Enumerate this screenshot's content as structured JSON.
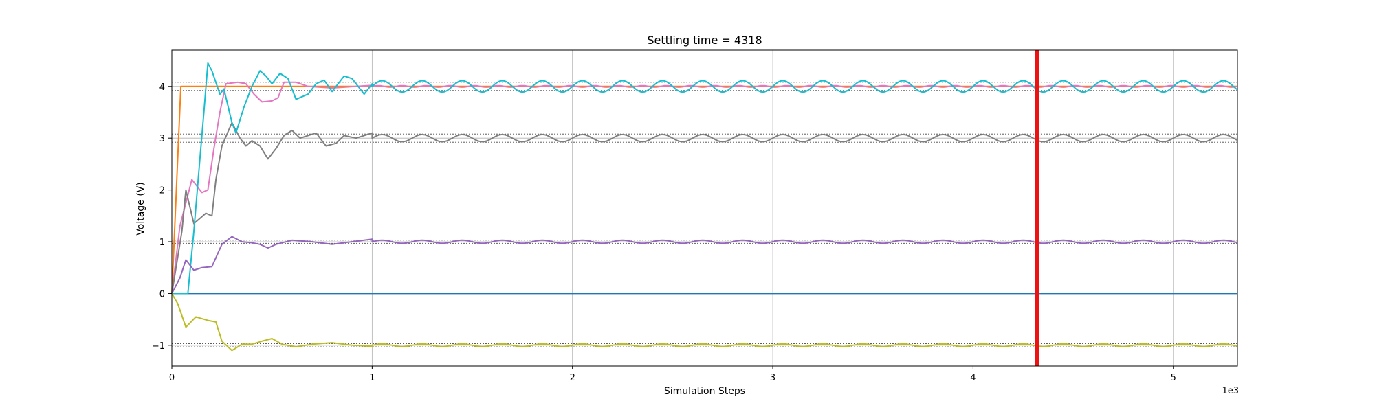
{
  "chart_data": {
    "type": "line",
    "title": "Settling time = 4318",
    "xlabel": "Simulation Steps",
    "ylabel": "Voltage (V)",
    "x_offset_label": "1e3",
    "xlim": [
      0,
      5.32
    ],
    "ylim": [
      -1.4,
      4.7
    ],
    "x_ticks": [
      0,
      1,
      2,
      3,
      4,
      5
    ],
    "x_tick_labels": [
      "0",
      "1",
      "2",
      "3",
      "4",
      "5"
    ],
    "y_ticks": [
      -1,
      0,
      1,
      2,
      3,
      4
    ],
    "y_tick_labels": [
      "−1",
      "0",
      "1",
      "2",
      "3",
      "4"
    ],
    "grid": true,
    "settling_time": 4.318,
    "settling_marker_color": "#ee1111",
    "reference_band_color": "#444444",
    "reference_bands": [
      {
        "target": 4,
        "tol": 0.08
      },
      {
        "target": 3,
        "tol": 0.08
      },
      {
        "target": 1,
        "tol": 0.03
      },
      {
        "target": -1,
        "tol": 0.03
      }
    ],
    "series": [
      {
        "color": "#1f77b4",
        "points": [
          [
            0,
            0
          ],
          [
            5.32,
            0
          ]
        ]
      },
      {
        "color": "#ff7f0e",
        "points": [
          [
            0,
            0
          ],
          [
            0.045,
            4.0
          ],
          [
            5.32,
            4.0
          ]
        ]
      },
      {
        "color": "#e377c2",
        "points": [
          [
            0,
            0
          ],
          [
            0.04,
            1.3
          ],
          [
            0.1,
            2.2
          ],
          [
            0.15,
            1.95
          ],
          [
            0.18,
            2.0
          ],
          [
            0.21,
            2.8
          ],
          [
            0.24,
            3.5
          ],
          [
            0.27,
            4.05
          ],
          [
            0.33,
            4.08
          ],
          [
            0.37,
            4.05
          ],
          [
            0.41,
            3.85
          ],
          [
            0.45,
            3.7
          ],
          [
            0.5,
            3.72
          ],
          [
            0.53,
            3.78
          ],
          [
            0.56,
            4.08
          ],
          [
            0.62,
            4.08
          ],
          [
            0.68,
            4.0
          ],
          [
            0.8,
            3.97
          ],
          [
            1.0,
            4.02
          ],
          [
            5.32,
            4.0
          ]
        ],
        "osc": {
          "start": 1.0,
          "center": 4.0,
          "amp": 0.015,
          "period": 0.12
        }
      },
      {
        "color": "#7f7f7f",
        "points": [
          [
            0,
            0
          ],
          [
            0.05,
            1.2
          ],
          [
            0.07,
            2.0
          ],
          [
            0.11,
            1.35
          ],
          [
            0.17,
            1.55
          ],
          [
            0.2,
            1.5
          ],
          [
            0.22,
            2.2
          ],
          [
            0.25,
            2.85
          ],
          [
            0.3,
            3.3
          ],
          [
            0.34,
            3.0
          ],
          [
            0.37,
            2.85
          ],
          [
            0.4,
            2.95
          ],
          [
            0.44,
            2.85
          ],
          [
            0.48,
            2.6
          ],
          [
            0.52,
            2.8
          ],
          [
            0.56,
            3.05
          ],
          [
            0.6,
            3.15
          ],
          [
            0.64,
            3.0
          ],
          [
            0.68,
            3.05
          ],
          [
            0.72,
            3.1
          ],
          [
            0.77,
            2.85
          ],
          [
            0.82,
            2.9
          ],
          [
            0.86,
            3.05
          ],
          [
            0.92,
            3.0
          ],
          [
            1.0,
            3.1
          ],
          [
            5.32,
            3.0
          ]
        ],
        "osc": {
          "start": 1.0,
          "center": 3.0,
          "amp": 0.07,
          "period": 0.2
        }
      },
      {
        "color": "#17becf",
        "points": [
          [
            0,
            0
          ],
          [
            0.08,
            0
          ],
          [
            0.11,
            1.2
          ],
          [
            0.14,
            2.6
          ],
          [
            0.16,
            3.5
          ],
          [
            0.18,
            4.45
          ],
          [
            0.2,
            4.3
          ],
          [
            0.24,
            3.85
          ],
          [
            0.26,
            3.95
          ],
          [
            0.3,
            3.3
          ],
          [
            0.32,
            3.1
          ],
          [
            0.36,
            3.6
          ],
          [
            0.4,
            4.0
          ],
          [
            0.44,
            4.3
          ],
          [
            0.47,
            4.2
          ],
          [
            0.5,
            4.05
          ],
          [
            0.54,
            4.25
          ],
          [
            0.58,
            4.15
          ],
          [
            0.62,
            3.75
          ],
          [
            0.68,
            3.85
          ],
          [
            0.72,
            4.05
          ],
          [
            0.76,
            4.12
          ],
          [
            0.8,
            3.9
          ],
          [
            0.86,
            4.2
          ],
          [
            0.9,
            4.15
          ],
          [
            0.96,
            3.85
          ],
          [
            1.0,
            4.05
          ],
          [
            5.32,
            4.0
          ]
        ],
        "osc": {
          "start": 1.0,
          "center": 4.0,
          "amp": 0.11,
          "period": 0.2
        }
      },
      {
        "color": "#9467bd",
        "points": [
          [
            0,
            0
          ],
          [
            0.04,
            0.3
          ],
          [
            0.07,
            0.65
          ],
          [
            0.11,
            0.45
          ],
          [
            0.15,
            0.5
          ],
          [
            0.2,
            0.52
          ],
          [
            0.25,
            0.95
          ],
          [
            0.3,
            1.1
          ],
          [
            0.35,
            1.0
          ],
          [
            0.4,
            0.98
          ],
          [
            0.44,
            0.95
          ],
          [
            0.48,
            0.88
          ],
          [
            0.52,
            0.95
          ],
          [
            0.6,
            1.03
          ],
          [
            0.7,
            1.0
          ],
          [
            0.8,
            0.95
          ],
          [
            0.9,
            1.0
          ],
          [
            1.0,
            1.05
          ],
          [
            5.32,
            1.0
          ]
        ],
        "osc": {
          "start": 1.0,
          "center": 1.0,
          "amp": 0.03,
          "period": 0.2
        }
      },
      {
        "color": "#bcbd22",
        "points": [
          [
            0,
            0
          ],
          [
            0.03,
            -0.2
          ],
          [
            0.07,
            -0.65
          ],
          [
            0.12,
            -0.45
          ],
          [
            0.18,
            -0.52
          ],
          [
            0.22,
            -0.55
          ],
          [
            0.25,
            -0.92
          ],
          [
            0.3,
            -1.1
          ],
          [
            0.35,
            -0.98
          ],
          [
            0.4,
            -0.98
          ],
          [
            0.45,
            -0.92
          ],
          [
            0.5,
            -0.87
          ],
          [
            0.55,
            -0.98
          ],
          [
            0.62,
            -1.03
          ],
          [
            0.7,
            -0.98
          ],
          [
            0.8,
            -0.95
          ],
          [
            0.9,
            -1.0
          ],
          [
            1.0,
            -1.02
          ],
          [
            5.32,
            -1.0
          ]
        ],
        "osc": {
          "start": 1.0,
          "center": -1.0,
          "amp": 0.025,
          "period": 0.2
        }
      }
    ]
  }
}
